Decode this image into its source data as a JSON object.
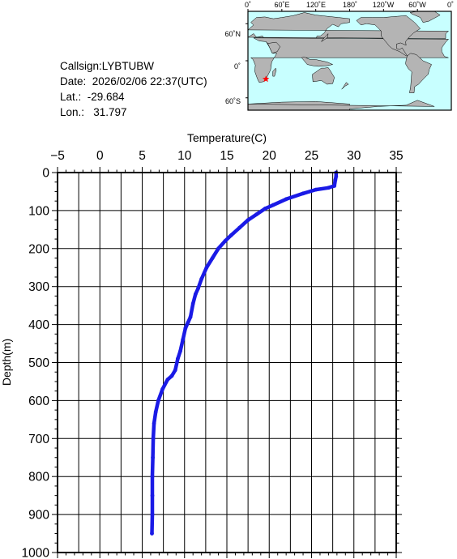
{
  "info": {
    "callsign": "Callsign:LYBTUBW",
    "date": "Date:  2026/02/06 22:37(UTC)",
    "lat": "Lat.:  -29.684",
    "lon": "Lon.:   31.797"
  },
  "map": {
    "top_labels": [
      "0˚",
      "60˚E",
      "120˚E",
      "180˚",
      "120˚W",
      "60˚W",
      "0˚"
    ],
    "left_labels": [
      "60˚N",
      "0˚",
      "60˚S"
    ],
    "ocean_color": "#c8ffff",
    "land_color": "#b4b4b4",
    "marker_color": "#ff0000",
    "marker": {
      "lon": 31.797,
      "lat": -29.684
    }
  },
  "chart_data": {
    "type": "line",
    "xlabel": "Temperature(C)",
    "ylabel": "Depth(m)",
    "xlim": [
      -5,
      35
    ],
    "ylim": [
      0,
      1000
    ],
    "y_inverted": true,
    "x_ticks": [
      "−5",
      "0",
      "5",
      "10",
      "15",
      "20",
      "25",
      "30",
      "35"
    ],
    "y_ticks": [
      "0",
      "100",
      "200",
      "300",
      "400",
      "500",
      "600",
      "700",
      "800",
      "900",
      "1000"
    ],
    "grid": true,
    "line_color": "#1a1ae6",
    "series": [
      {
        "x": [
          27.9,
          27.9,
          27.8,
          27.7,
          27.0,
          25.5,
          24.0,
          22.0,
          20.5,
          19.5,
          18.5,
          17.5,
          16.5,
          15.5,
          14.8,
          14.0,
          13.3,
          12.6,
          12.0,
          11.6,
          11.3,
          11.0,
          10.7,
          10.4,
          10.1,
          9.8,
          9.5,
          9.2,
          8.9,
          8.5,
          8.0,
          7.4,
          6.9,
          6.6,
          6.4,
          6.3,
          6.25,
          6.2,
          6.2,
          6.2,
          6.15
        ],
        "y": [
          0,
          10,
          20,
          35,
          40,
          45,
          55,
          70,
          85,
          95,
          110,
          125,
          145,
          165,
          180,
          200,
          225,
          250,
          280,
          305,
          320,
          345,
          380,
          395,
          410,
          440,
          470,
          490,
          520,
          535,
          545,
          570,
          600,
          630,
          660,
          700,
          750,
          800,
          850,
          900,
          950
        ]
      }
    ]
  }
}
